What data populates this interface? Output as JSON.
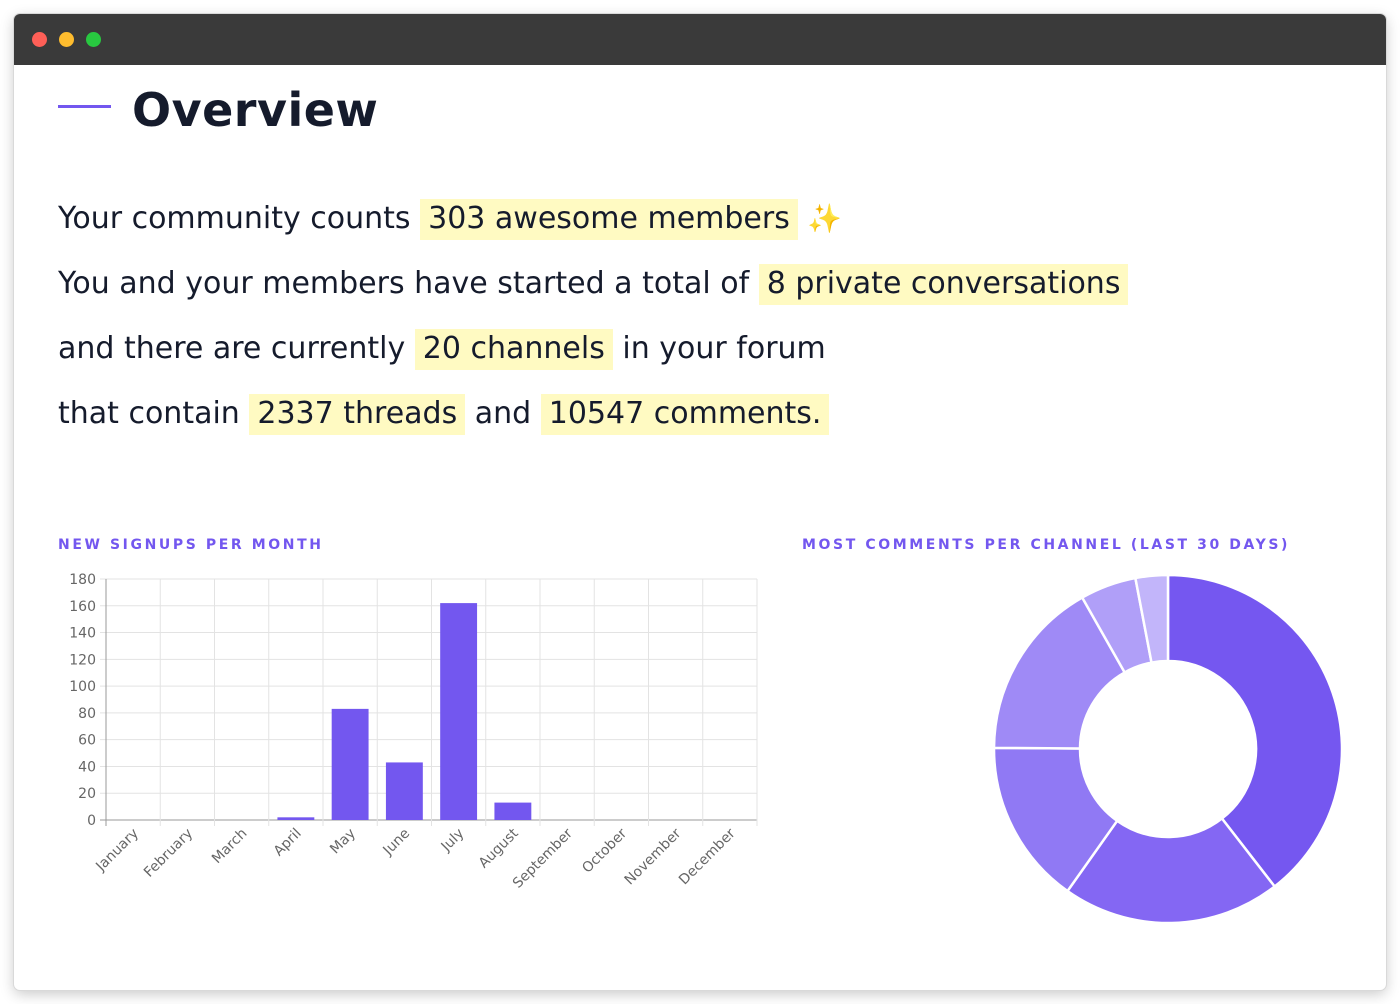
{
  "window": {
    "buttons": [
      {
        "name": "close",
        "color": "#fe5f57"
      },
      {
        "name": "minimize",
        "color": "#febc2e"
      },
      {
        "name": "maximize",
        "color": "#28c840"
      }
    ]
  },
  "page": {
    "title": "Overview"
  },
  "stats": {
    "line1": {
      "prefix": "Your community counts",
      "highlight": "303 awesome members",
      "emoji": "✨"
    },
    "line2": {
      "prefix": "You and your members have started a total of",
      "highlight": "8 private conversations"
    },
    "line3": {
      "prefix": "and there are currently",
      "highlight": "20 channels",
      "suffix": "in your forum"
    },
    "line4": {
      "prefix": "that contain",
      "highlight1": "2337 threads",
      "middle": "and",
      "highlight2": "10547 comments."
    }
  },
  "colors": {
    "accent": "#7357ef",
    "highlight": "#fffac2",
    "text": "#151b2c"
  },
  "charts": {
    "signups_title": "NEW SIGNUPS PER MONTH",
    "comments_title": "MOST COMMENTS PER CHANNEL (LAST 30 DAYS)"
  },
  "chart_data": [
    {
      "type": "bar",
      "title": "NEW SIGNUPS PER MONTH",
      "categories": [
        "January",
        "February",
        "March",
        "April",
        "May",
        "June",
        "July",
        "August",
        "September",
        "October",
        "November",
        "December"
      ],
      "values": [
        0,
        0,
        0,
        2,
        83,
        43,
        162,
        13,
        0,
        0,
        0,
        0
      ],
      "ylim": [
        0,
        180
      ],
      "yticks": [
        0,
        20,
        40,
        60,
        80,
        100,
        120,
        140,
        160,
        180
      ],
      "grid": true,
      "color": "#7357ef"
    },
    {
      "type": "pie",
      "title": "MOST COMMENTS PER CHANNEL (LAST 30 DAYS)",
      "donut": true,
      "values": [
        39.5,
        20.3,
        15.3,
        16.7,
        5.2,
        3.0
      ],
      "colors": [
        "#7557f0",
        "#8467f3",
        "#9079f4",
        "#9f8af6",
        "#b09ff8",
        "#c2b5fa"
      ]
    }
  ]
}
